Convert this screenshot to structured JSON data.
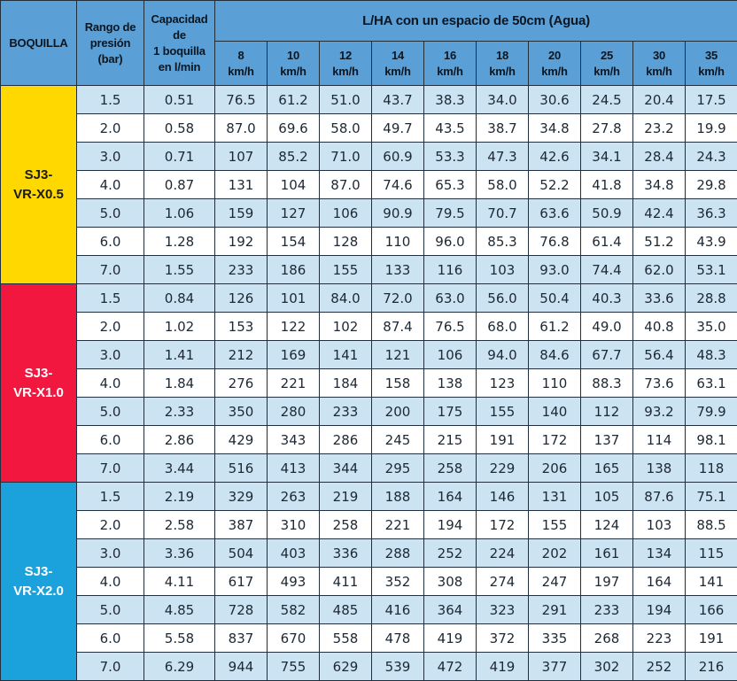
{
  "header": {
    "nozzle_label": "BOQUILLA",
    "pressure_lines": [
      "Rango de",
      "presión",
      "(bar)"
    ],
    "capacity_lines": [
      "Capacidad",
      "de",
      "1 boquilla",
      "en l/min"
    ],
    "span_title": "L/HA con un espacio de 50cm (Agua)",
    "speeds": [
      {
        "value": "8",
        "unit": "km/h"
      },
      {
        "value": "10",
        "unit": "km/h"
      },
      {
        "value": "12",
        "unit": "km/h"
      },
      {
        "value": "14",
        "unit": "km/h"
      },
      {
        "value": "16",
        "unit": "km/h"
      },
      {
        "value": "18",
        "unit": "km/h"
      },
      {
        "value": "20",
        "unit": "km/h"
      },
      {
        "value": "25",
        "unit": "km/h"
      },
      {
        "value": "30",
        "unit": "km/h"
      },
      {
        "value": "35",
        "unit": "km/h"
      }
    ]
  },
  "groups": [
    {
      "name_lines": [
        "SJ3-",
        "VR-X0.5"
      ],
      "color": "#ffd800",
      "text_color": "#1a1a1a",
      "rows": [
        {
          "pressure": "1.5",
          "capacity": "0.51",
          "values": [
            "76.5",
            "61.2",
            "51.0",
            "43.7",
            "38.3",
            "34.0",
            "30.6",
            "24.5",
            "20.4",
            "17.5"
          ]
        },
        {
          "pressure": "2.0",
          "capacity": "0.58",
          "values": [
            "87.0",
            "69.6",
            "58.0",
            "49.7",
            "43.5",
            "38.7",
            "34.8",
            "27.8",
            "23.2",
            "19.9"
          ]
        },
        {
          "pressure": "3.0",
          "capacity": "0.71",
          "values": [
            "107",
            "85.2",
            "71.0",
            "60.9",
            "53.3",
            "47.3",
            "42.6",
            "34.1",
            "28.4",
            "24.3"
          ]
        },
        {
          "pressure": "4.0",
          "capacity": "0.87",
          "values": [
            "131",
            "104",
            "87.0",
            "74.6",
            "65.3",
            "58.0",
            "52.2",
            "41.8",
            "34.8",
            "29.8"
          ]
        },
        {
          "pressure": "5.0",
          "capacity": "1.06",
          "values": [
            "159",
            "127",
            "106",
            "90.9",
            "79.5",
            "70.7",
            "63.6",
            "50.9",
            "42.4",
            "36.3"
          ]
        },
        {
          "pressure": "6.0",
          "capacity": "1.28",
          "values": [
            "192",
            "154",
            "128",
            "110",
            "96.0",
            "85.3",
            "76.8",
            "61.4",
            "51.2",
            "43.9"
          ]
        },
        {
          "pressure": "7.0",
          "capacity": "1.55",
          "values": [
            "233",
            "186",
            "155",
            "133",
            "116",
            "103",
            "93.0",
            "74.4",
            "62.0",
            "53.1"
          ]
        }
      ]
    },
    {
      "name_lines": [
        "SJ3-",
        "VR-X1.0"
      ],
      "color": "#f2173f",
      "text_color": "#ffffff",
      "rows": [
        {
          "pressure": "1.5",
          "capacity": "0.84",
          "values": [
            "126",
            "101",
            "84.0",
            "72.0",
            "63.0",
            "56.0",
            "50.4",
            "40.3",
            "33.6",
            "28.8"
          ]
        },
        {
          "pressure": "2.0",
          "capacity": "1.02",
          "values": [
            "153",
            "122",
            "102",
            "87.4",
            "76.5",
            "68.0",
            "61.2",
            "49.0",
            "40.8",
            "35.0"
          ]
        },
        {
          "pressure": "3.0",
          "capacity": "1.41",
          "values": [
            "212",
            "169",
            "141",
            "121",
            "106",
            "94.0",
            "84.6",
            "67.7",
            "56.4",
            "48.3"
          ]
        },
        {
          "pressure": "4.0",
          "capacity": "1.84",
          "values": [
            "276",
            "221",
            "184",
            "158",
            "138",
            "123",
            "110",
            "88.3",
            "73.6",
            "63.1"
          ]
        },
        {
          "pressure": "5.0",
          "capacity": "2.33",
          "values": [
            "350",
            "280",
            "233",
            "200",
            "175",
            "155",
            "140",
            "112",
            "93.2",
            "79.9"
          ]
        },
        {
          "pressure": "6.0",
          "capacity": "2.86",
          "values": [
            "429",
            "343",
            "286",
            "245",
            "215",
            "191",
            "172",
            "137",
            "114",
            "98.1"
          ]
        },
        {
          "pressure": "7.0",
          "capacity": "3.44",
          "values": [
            "516",
            "413",
            "344",
            "295",
            "258",
            "229",
            "206",
            "165",
            "138",
            "118"
          ]
        }
      ]
    },
    {
      "name_lines": [
        "SJ3-",
        "VR-X2.0"
      ],
      "color": "#1ba2dc",
      "text_color": "#ffffff",
      "rows": [
        {
          "pressure": "1.5",
          "capacity": "2.19",
          "values": [
            "329",
            "263",
            "219",
            "188",
            "164",
            "146",
            "131",
            "105",
            "87.6",
            "75.1"
          ]
        },
        {
          "pressure": "2.0",
          "capacity": "2.58",
          "values": [
            "387",
            "310",
            "258",
            "221",
            "194",
            "172",
            "155",
            "124",
            "103",
            "88.5"
          ]
        },
        {
          "pressure": "3.0",
          "capacity": "3.36",
          "values": [
            "504",
            "403",
            "336",
            "288",
            "252",
            "224",
            "202",
            "161",
            "134",
            "115"
          ]
        },
        {
          "pressure": "4.0",
          "capacity": "4.11",
          "values": [
            "617",
            "493",
            "411",
            "352",
            "308",
            "274",
            "247",
            "197",
            "164",
            "141"
          ]
        },
        {
          "pressure": "5.0",
          "capacity": "4.85",
          "values": [
            "728",
            "582",
            "485",
            "416",
            "364",
            "323",
            "291",
            "233",
            "194",
            "166"
          ]
        },
        {
          "pressure": "6.0",
          "capacity": "5.58",
          "values": [
            "837",
            "670",
            "558",
            "478",
            "419",
            "372",
            "335",
            "268",
            "223",
            "191"
          ]
        },
        {
          "pressure": "7.0",
          "capacity": "6.29",
          "values": [
            "944",
            "755",
            "629",
            "539",
            "472",
            "419",
            "377",
            "302",
            "252",
            "216"
          ]
        }
      ]
    }
  ]
}
